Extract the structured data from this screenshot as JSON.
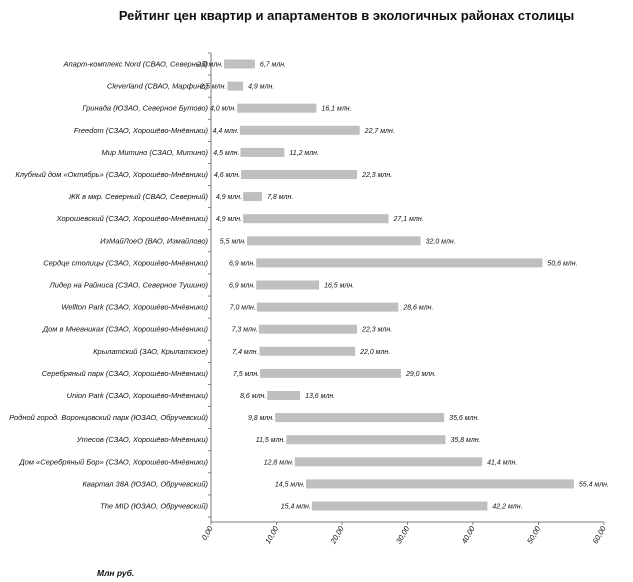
{
  "chart_data": {
    "type": "bar",
    "orientation": "horizontal-floating",
    "title": "Рейтинг цен квартир и апартаментов в экологичных районах столицы",
    "xlabel": "Млн руб.",
    "xlim": [
      0,
      60
    ],
    "xticks": [
      "0,00",
      "10,00",
      "20,00",
      "30,00",
      "40,00",
      "50,00",
      "60,00"
    ],
    "grid": false,
    "bar_color": "#bfbfbf",
    "categories": [
      "Апарт-комплекс Nord (СВАО, Северный)",
      "Cleverland (СВАО, Марфино)",
      "Гринада (ЮЗАО, Северное Бутово)",
      "Freedom (СЗАО, Хорошёво-Мнёвники)",
      "Мир Митино (СЗАО, Митино)",
      "Клубный дом «Октябрь» (СЗАО, Хорошёво-Мнёвники)",
      "ЖК в мкр. Северный (СВАО, Северный)",
      "Хорошевский (СЗАО, Хорошёво-Мнёвники)",
      "ИзМайЛоеО (ВАО, Измайлово)",
      "Сердце столицы (СЗАО, Хорошёво-Мнёвники)",
      "Лидер на Райниса (СЗАО, Северное Тушино)",
      "Wellton Park (СЗАО, Хорошёво-Мнёвники)",
      "Дом в Мневниках (СЗАО, Хорошёво-Мнёвники)",
      "Крылатский (ЗАО, Крылатское)",
      "Серебряный парк (СЗАО, Хорошёво-Мнёвники)",
      "Union Park (СЗАО, Хорошёво-Мнёвники)",
      "Родной город. Воронцовский парк (ЮЗАО, Обручевский)",
      "Утесов (СЗАО, Хорошёво-Мнёвники)",
      "Дом «Серебряный Бор» (СЗАО, Хорошёво-Мнёвники)",
      "Квартал 38А (ЮЗАО, Обручевский)",
      "The MID (ЮЗАО, Обручевский)"
    ],
    "min_values": [
      2.0,
      2.5,
      4.0,
      4.4,
      4.5,
      4.6,
      4.9,
      4.9,
      5.5,
      6.9,
      6.9,
      7.0,
      7.3,
      7.4,
      7.5,
      8.6,
      9.8,
      11.5,
      12.8,
      14.5,
      15.4
    ],
    "max_values": [
      6.7,
      4.9,
      16.1,
      22.7,
      11.2,
      22.3,
      7.8,
      27.1,
      32.0,
      50.6,
      16.5,
      28.6,
      22.3,
      22.0,
      29.0,
      13.6,
      35.6,
      35.8,
      41.4,
      55.4,
      42.2
    ],
    "min_labels": [
      "2,0 млн.",
      "2,5 млн.",
      "4,0 млн.",
      "4,4 млн.",
      "4,5 млн.",
      "4,6 млн.",
      "4,9 млн.",
      "4,9 млн.",
      "5,5 млн.",
      "6,9 млн.",
      "6,9 млн.",
      "7,0 млн.",
      "7,3 млн.",
      "7,4 млн.",
      "7,5 млн.",
      "8,6 млн.",
      "9,8 млн.",
      "11,5 млн.",
      "12,8 млн.",
      "14,5 млн.",
      "15,4 млн."
    ],
    "max_labels": [
      "6,7 млн.",
      "4,9 млн.",
      "16,1 млн.",
      "22,7 млн.",
      "11,2 млн.",
      "22,3 млн.",
      "7,8 млн.",
      "27,1 млн.",
      "32,0 млн.",
      "50,6 млн.",
      "16,5 млн.",
      "28,6 млн.",
      "22,3 млн.",
      "22,0 млн.",
      "29,0 млн.",
      "13,6 млн.",
      "35,6 млн.",
      "35,8 млн.",
      "41,4 млн.",
      "55,4 млн.",
      "42,2 млн."
    ]
  }
}
